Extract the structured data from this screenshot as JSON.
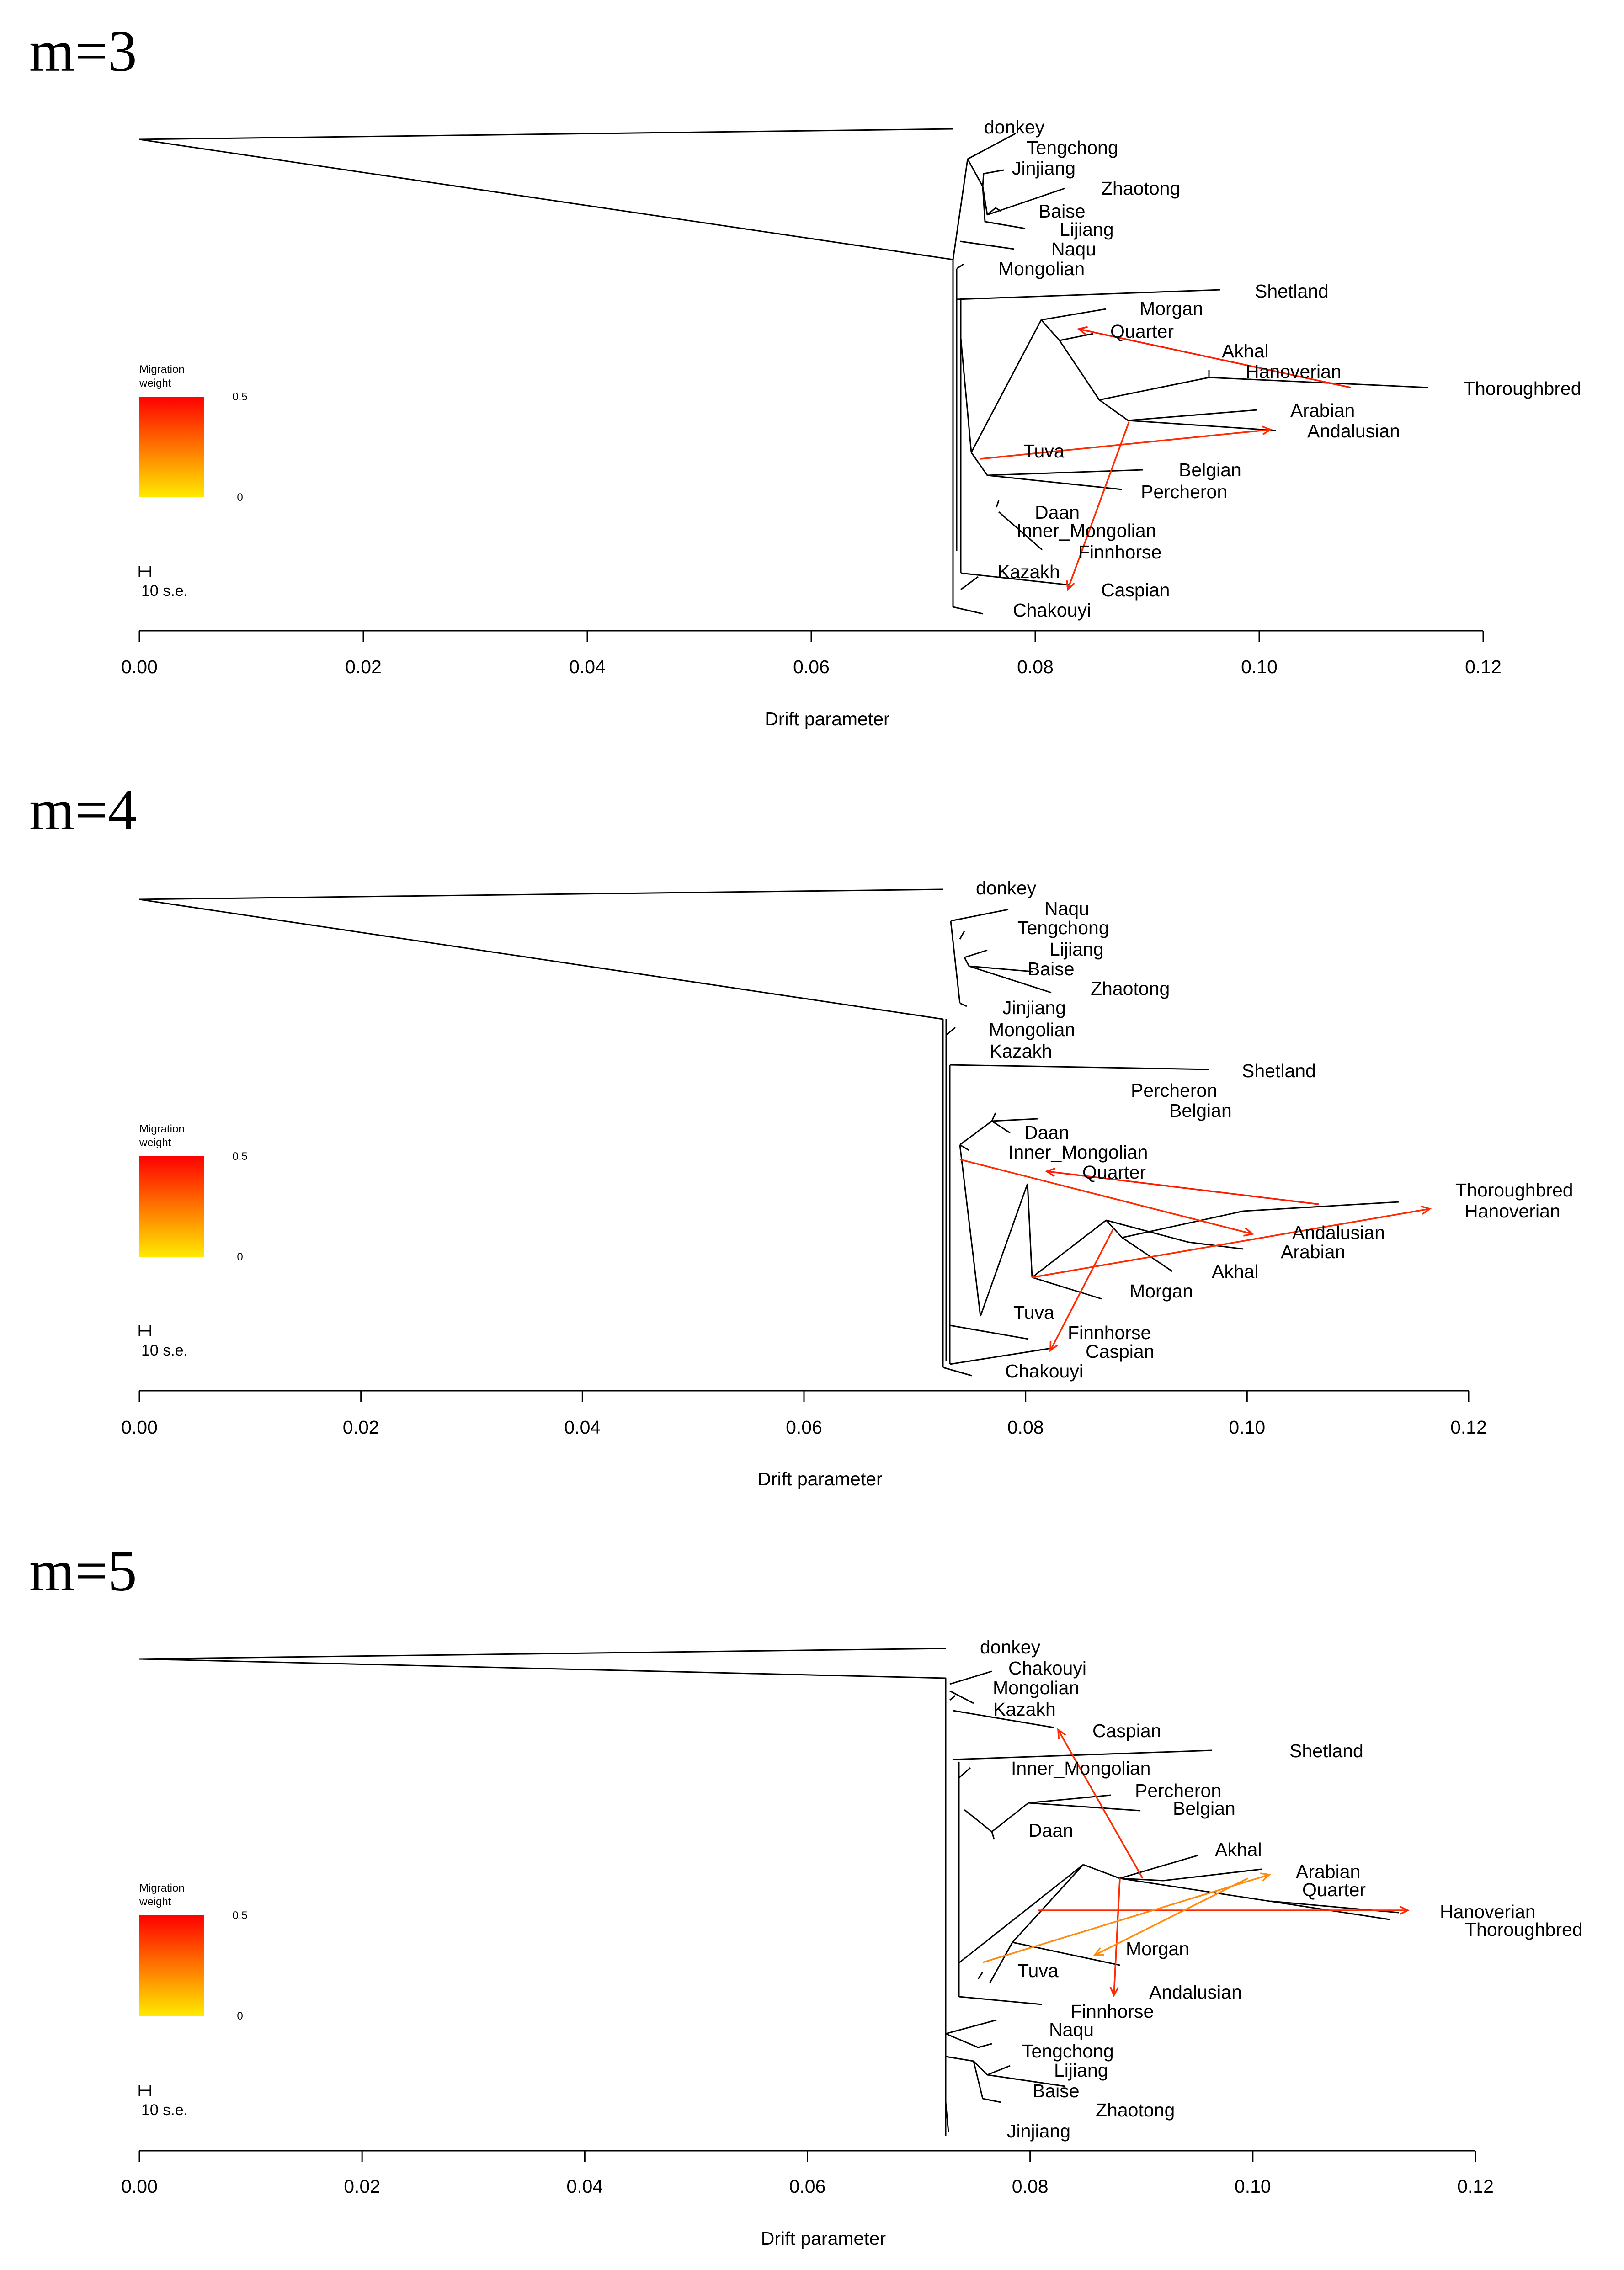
{
  "chart_data": [
    {
      "type": "tree",
      "title": "m=3",
      "xlabel": "Drift parameter",
      "xlim": [
        0,
        0.12
      ],
      "xticks": [
        "0.00",
        "0.02",
        "0.04",
        "0.06",
        "0.08",
        "0.10",
        "0.12"
      ],
      "legend": {
        "title": "Migration weight",
        "max_label": "0.5",
        "min_label": "0",
        "scale_label": "10 s.e."
      },
      "leaves": [
        {
          "name": "donkey",
          "x": 0.072
        },
        {
          "name": "Tengchong",
          "x": 0.076
        },
        {
          "name": "Jinjiang",
          "x": 0.074
        },
        {
          "name": "Zhaotong",
          "x": 0.082
        },
        {
          "name": "Baise",
          "x": 0.076
        },
        {
          "name": "Lijiang",
          "x": 0.079
        },
        {
          "name": "Naqu",
          "x": 0.079
        },
        {
          "name": "Mongolian",
          "x": 0.075
        },
        {
          "name": "Shetland",
          "x": 0.096
        },
        {
          "name": "Morgan",
          "x": 0.085
        },
        {
          "name": "Quarter",
          "x": 0.083
        },
        {
          "name": "Akhal",
          "x": 0.096
        },
        {
          "name": "Hanoverian",
          "x": 0.099
        },
        {
          "name": "Thoroughbred",
          "x": 0.115
        },
        {
          "name": "Arabian",
          "x": 0.1
        },
        {
          "name": "Andalusian",
          "x": 0.102
        },
        {
          "name": "Tuva",
          "x": 0.076
        },
        {
          "name": "Belgian",
          "x": 0.089
        },
        {
          "name": "Percheron",
          "x": 0.086
        },
        {
          "name": "Daan",
          "x": 0.077
        },
        {
          "name": "Inner_Mongolian",
          "x": 0.078
        },
        {
          "name": "Finnhorse",
          "x": 0.083
        },
        {
          "name": "Kazakh",
          "x": 0.075
        },
        {
          "name": "Caspian",
          "x": 0.083
        },
        {
          "name": "Chakouyi",
          "x": 0.076
        }
      ],
      "migrations": [
        {
          "from": "Thoroughbred lineage",
          "to": "Quarter",
          "weight": 0.5
        },
        {
          "from": "Tuva",
          "to": "Andalusian",
          "weight": 0.5
        },
        {
          "from": "Arabian/Andalusian ancestor",
          "to": "Caspian",
          "weight": 0.5
        }
      ]
    },
    {
      "type": "tree",
      "title": "m=4",
      "xlabel": "Drift parameter",
      "xlim": [
        0,
        0.12
      ],
      "xticks": [
        "0.00",
        "0.02",
        "0.04",
        "0.06",
        "0.08",
        "0.10",
        "0.12"
      ],
      "legend": {
        "title": "Migration weight",
        "max_label": "0.5",
        "min_label": "0",
        "scale_label": "10 s.e."
      },
      "leaves": [
        {
          "name": "donkey",
          "x": 0.072
        },
        {
          "name": "Naqu",
          "x": 0.079
        },
        {
          "name": "Tengchong",
          "x": 0.077
        },
        {
          "name": "Lijiang",
          "x": 0.08
        },
        {
          "name": "Baise",
          "x": 0.077
        },
        {
          "name": "Zhaotong",
          "x": 0.084
        },
        {
          "name": "Jinjiang",
          "x": 0.077
        },
        {
          "name": "Mongolian",
          "x": 0.076
        },
        {
          "name": "Kazakh",
          "x": 0.076
        },
        {
          "name": "Shetland",
          "x": 0.096
        },
        {
          "name": "Percheron",
          "x": 0.087
        },
        {
          "name": "Belgian",
          "x": 0.09
        },
        {
          "name": "Daan",
          "x": 0.078
        },
        {
          "name": "Inner_Mongolian",
          "x": 0.078
        },
        {
          "name": "Quarter",
          "x": 0.083
        },
        {
          "name": "Thoroughbred",
          "x": 0.116
        },
        {
          "name": "Hanoverian",
          "x": 0.117
        },
        {
          "name": "Andalusian",
          "x": 0.101
        },
        {
          "name": "Arabian",
          "x": 0.099
        },
        {
          "name": "Akhal",
          "x": 0.095
        },
        {
          "name": "Morgan",
          "x": 0.087
        },
        {
          "name": "Tuva",
          "x": 0.077
        },
        {
          "name": "Finnhorse",
          "x": 0.082
        },
        {
          "name": "Caspian",
          "x": 0.084
        },
        {
          "name": "Chakouyi",
          "x": 0.076
        }
      ],
      "migrations": [
        {
          "from": "Thoroughbred lineage",
          "to": "Quarter",
          "weight": 0.5
        },
        {
          "from": "Inner_Mongolian lineage",
          "to": "Andalusian",
          "weight": 0.5
        },
        {
          "from": "Morgan/Akhal lineage",
          "to": "Hanoverian",
          "weight": 0.5
        },
        {
          "from": "Arabian/Andalusian ancestor",
          "to": "Caspian",
          "weight": 0.5
        }
      ]
    },
    {
      "type": "tree",
      "title": "m=5",
      "xlabel": "Drift parameter",
      "xlim": [
        0,
        0.12
      ],
      "xticks": [
        "0.00",
        "0.02",
        "0.04",
        "0.06",
        "0.08",
        "0.10",
        "0.12"
      ],
      "legend": {
        "title": "Migration weight",
        "max_label": "0.5",
        "min_label": "0",
        "scale_label": "10 s.e."
      },
      "leaves": [
        {
          "name": "donkey",
          "x": 0.072
        },
        {
          "name": "Chakouyi",
          "x": 0.077
        },
        {
          "name": "Mongolian",
          "x": 0.076
        },
        {
          "name": "Kazakh",
          "x": 0.076
        },
        {
          "name": "Caspian",
          "x": 0.083
        },
        {
          "name": "Shetland",
          "x": 0.096
        },
        {
          "name": "Inner_Mongolian",
          "x": 0.078
        },
        {
          "name": "Percheron",
          "x": 0.088
        },
        {
          "name": "Belgian",
          "x": 0.09
        },
        {
          "name": "Daan",
          "x": 0.08
        },
        {
          "name": "Akhal",
          "x": 0.095
        },
        {
          "name": "Arabian",
          "x": 0.101
        },
        {
          "name": "Quarter",
          "x": 0.103
        },
        {
          "name": "Hanoverian",
          "x": 0.116
        },
        {
          "name": "Thoroughbred",
          "x": 0.118
        },
        {
          "name": "Morgan",
          "x": 0.088
        },
        {
          "name": "Tuva",
          "x": 0.078
        },
        {
          "name": "Andalusian",
          "x": 0.094
        },
        {
          "name": "Finnhorse",
          "x": 0.083
        },
        {
          "name": "Naqu",
          "x": 0.08
        },
        {
          "name": "Tengchong",
          "x": 0.079
        },
        {
          "name": "Lijiang",
          "x": 0.081
        },
        {
          "name": "Baise",
          "x": 0.079
        },
        {
          "name": "Zhaotong",
          "x": 0.085
        },
        {
          "name": "Jinjiang",
          "x": 0.078
        }
      ],
      "migrations": [
        {
          "from": "Tuva",
          "to": "Hanoverian",
          "weight": 0.5
        },
        {
          "from": "Arabian/Quarter ancestor",
          "to": "Caspian",
          "weight": 0.5
        },
        {
          "from": "Arabian/Quarter ancestor",
          "to": "Andalusian",
          "weight": 0.5
        },
        {
          "from": "Tuva",
          "to": "Quarter",
          "weight": 0.3
        },
        {
          "from": "Quarter lineage",
          "to": "Morgan",
          "weight": 0.3
        }
      ]
    }
  ]
}
